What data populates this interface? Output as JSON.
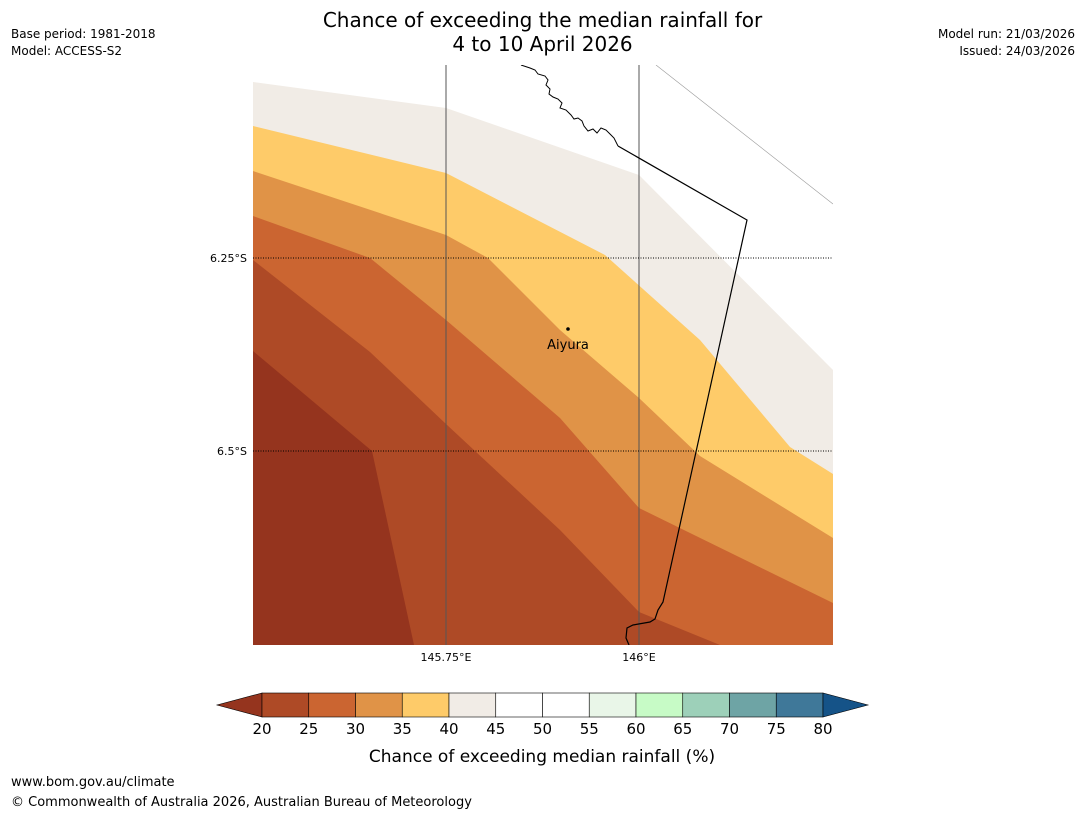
{
  "title": {
    "line1": "Chance of exceeding the median rainfall for",
    "line2": "4 to 10 April 2026"
  },
  "meta_left": {
    "base_period": "Base period: 1981-2018",
    "model": "Model: ACCESS-S2"
  },
  "meta_right": {
    "model_run": "Model run: 21/03/2026",
    "issued": "Issued: 24/03/2026"
  },
  "map": {
    "lat_labels": [
      "6.25°S",
      "6.5°S"
    ],
    "lon_labels": [
      "145.75°E",
      "146°E"
    ],
    "place": "Aiyura"
  },
  "colorbar": {
    "ticks": [
      "20",
      "25",
      "30",
      "35",
      "40",
      "45",
      "50",
      "55",
      "60",
      "65",
      "70",
      "75",
      "80"
    ],
    "colors": {
      "under": "#95341e",
      "bins": [
        "#ae4a26",
        "#cb6531",
        "#e09347",
        "#fecb69",
        "#f1ece6",
        "#ffffff",
        "#ffffff",
        "#e9f6e8",
        "#c7fbc6",
        "#9dd0b9",
        "#6ea4a5",
        "#3f7899"
      ],
      "over": "#155388"
    },
    "label": "Chance of exceeding median rainfall (%)"
  },
  "footer": {
    "url": "www.bom.gov.au/climate",
    "copyright": "© Commonwealth of Australia 2026, Australian Bureau of Meteorology"
  }
}
